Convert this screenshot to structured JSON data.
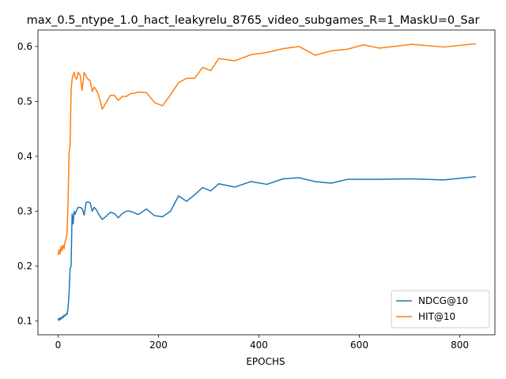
{
  "chart_data": {
    "type": "line",
    "title": "max_0.5_ntype_1.0_hact_leakyrelu_8765_video_subgames_R=1_MaskU=0_Sar",
    "xlabel": "EPOCHS",
    "ylabel": "",
    "xlim": [
      -40,
      870
    ],
    "ylim": [
      0.075,
      0.63
    ],
    "xticks": [
      0,
      200,
      400,
      600,
      800
    ],
    "yticks": [
      0.1,
      0.2,
      0.3,
      0.4,
      0.5,
      0.6
    ],
    "yticklabels": [
      "0.1",
      "0.2",
      "0.3",
      "0.4",
      "0.5",
      "0.6"
    ],
    "grid": false,
    "legend_position": "lower right",
    "series": [
      {
        "name": "NDCG@10",
        "color": "#1f77b4",
        "x": [
          0,
          2,
          4,
          6,
          8,
          10,
          12,
          14,
          16,
          18,
          20,
          22,
          24,
          26,
          28,
          30,
          32,
          34,
          37,
          40,
          44,
          48,
          52,
          56,
          60,
          64,
          68,
          72,
          76,
          80,
          84,
          88,
          96,
          104,
          112,
          120,
          128,
          136,
          144,
          152,
          160,
          176,
          192,
          208,
          224,
          240,
          256,
          272,
          288,
          304,
          320,
          352,
          384,
          416,
          448,
          480,
          512,
          544,
          576,
          608,
          640,
          704,
          768,
          832
        ],
        "y": [
          0.105,
          0.101,
          0.106,
          0.103,
          0.108,
          0.106,
          0.111,
          0.109,
          0.113,
          0.112,
          0.125,
          0.15,
          0.195,
          0.2,
          0.295,
          0.277,
          0.3,
          0.294,
          0.302,
          0.307,
          0.307,
          0.305,
          0.293,
          0.316,
          0.317,
          0.315,
          0.3,
          0.307,
          0.303,
          0.296,
          0.29,
          0.285,
          0.291,
          0.298,
          0.296,
          0.288,
          0.296,
          0.3,
          0.3,
          0.297,
          0.294,
          0.304,
          0.292,
          0.29,
          0.3,
          0.328,
          0.318,
          0.33,
          0.343,
          0.337,
          0.35,
          0.344,
          0.354,
          0.349,
          0.359,
          0.361,
          0.354,
          0.351,
          0.358,
          0.358,
          0.358,
          0.359,
          0.357,
          0.363
        ]
      },
      {
        "name": "HIT@10",
        "color": "#ff7f0e",
        "x": [
          0,
          2,
          4,
          6,
          8,
          10,
          12,
          14,
          16,
          18,
          20,
          22,
          24,
          26,
          28,
          30,
          32,
          34,
          37,
          40,
          44,
          48,
          52,
          56,
          60,
          64,
          68,
          72,
          76,
          80,
          84,
          88,
          96,
          104,
          112,
          120,
          128,
          136,
          144,
          152,
          160,
          176,
          192,
          208,
          224,
          240,
          256,
          272,
          288,
          304,
          320,
          352,
          384,
          416,
          448,
          480,
          512,
          544,
          576,
          608,
          640,
          704,
          768,
          832
        ],
        "y": [
          0.22,
          0.23,
          0.222,
          0.236,
          0.228,
          0.238,
          0.232,
          0.245,
          0.25,
          0.26,
          0.32,
          0.405,
          0.42,
          0.52,
          0.54,
          0.548,
          0.553,
          0.545,
          0.54,
          0.553,
          0.548,
          0.52,
          0.553,
          0.545,
          0.54,
          0.538,
          0.518,
          0.526,
          0.521,
          0.513,
          0.5,
          0.486,
          0.498,
          0.511,
          0.511,
          0.502,
          0.509,
          0.509,
          0.514,
          0.515,
          0.517,
          0.516,
          0.498,
          0.492,
          0.512,
          0.534,
          0.542,
          0.542,
          0.562,
          0.556,
          0.578,
          0.574,
          0.585,
          0.589,
          0.596,
          0.6,
          0.584,
          0.592,
          0.595,
          0.603,
          0.597,
          0.604,
          0.599,
          0.605
        ]
      }
    ]
  }
}
